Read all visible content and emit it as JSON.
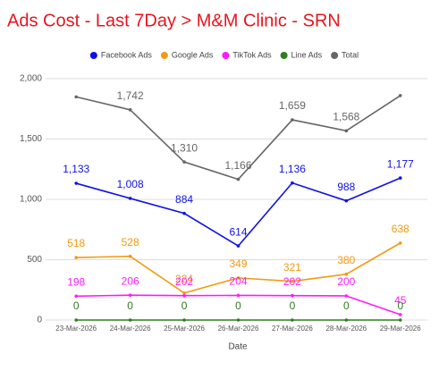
{
  "chart_data": {
    "type": "line",
    "title": "Ads Cost - Last 7Day > M&M Clinic - SRN",
    "x_label": "Date",
    "categories": [
      "23-Mar-2026",
      "24-Mar-2026",
      "25-Mar-2026",
      "26-Mar-2026",
      "27-Mar-2026",
      "28-Mar-2026",
      "29-Mar-2026"
    ],
    "series": [
      {
        "name": "Facebook Ads",
        "color": "#1010e8",
        "values": [
          1133,
          1008,
          884,
          614,
          1136,
          988,
          1177
        ],
        "value_labels": [
          "1,133",
          "1,008",
          "884",
          "614",
          "1,136",
          "988",
          "1,177"
        ]
      },
      {
        "name": "Google Ads",
        "color": "#f29a12",
        "values": [
          518,
          528,
          224,
          349,
          321,
          380,
          638
        ]
      },
      {
        "name": "TikTok Ads",
        "color": "#ff19ff",
        "values": [
          198,
          206,
          202,
          204,
          202,
          200,
          45
        ]
      },
      {
        "name": "Line Ads",
        "color": "#2e7d1e",
        "values": [
          0,
          0,
          0,
          0,
          0,
          0,
          0
        ]
      },
      {
        "name": "Total",
        "color": "#666666",
        "values": [
          1849,
          1742,
          1310,
          1166,
          1659,
          1568,
          1860
        ],
        "value_labels": [
          null,
          "1,742",
          "1,310",
          "1,166",
          "1,659",
          "1,568",
          null
        ]
      }
    ],
    "ylim": [
      0,
      2000
    ],
    "yticks": [
      0,
      500,
      {
        "value": 1000,
        "label": "1,000"
      },
      {
        "value": 1500,
        "label": "1,500"
      },
      {
        "value": 2000,
        "label": "2,000"
      }
    ],
    "grid": true,
    "legend": "top"
  }
}
